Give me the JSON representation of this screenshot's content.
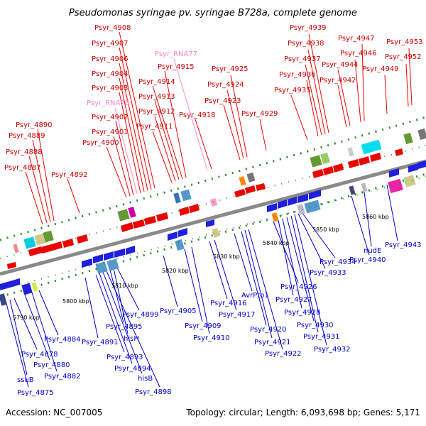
{
  "title": "Pseudomonas syringae pv. syringae B728a, complete genome",
  "footer": {
    "accession": "Accession: NC_007005",
    "summary": "Topology: circular; Length: 6,093,698 bp; Genes: 5,171"
  },
  "colors": {
    "forward_label": "#cc0000",
    "reverse_label": "#0000cc",
    "rna_label": "#ff88cc",
    "backbone": "#8a8a8a",
    "forward_cds": "#ee0000",
    "reverse_cds": "#1f1fdd",
    "tick": "#2e8b2e"
  },
  "scale_labels": [
    "5790 kbp",
    "5800 kbp",
    "5810 kbp",
    "5820 kbp",
    "5830 kbp",
    "5840 kbp",
    "5850 kbp",
    "5860 kbp"
  ],
  "forward_labels": [
    "Psyr_4887",
    "Psyr_4888",
    "Psyr_4889",
    "Psyr_4890",
    "Psyr_4892",
    "Psyr_4900",
    "Psyr_4901",
    "Psyr_4902",
    "Psyr_RNA76",
    "Psyr_4903",
    "Psyr_4904",
    "Psyr_4906",
    "Psyr_4907",
    "Psyr_4908",
    "Psyr_4911",
    "Psyr_4912",
    "Psyr_4913",
    "Psyr_4914",
    "Psyr_4915",
    "Psyr_RNA77",
    "Psyr_4918",
    "Psyr_4923",
    "Psyr_4924",
    "Psyr_4925",
    "Psyr_4929",
    "Psyr_4935",
    "Psyr_4936",
    "Psyr_4937",
    "Psyr_4938",
    "Psyr_4939",
    "Psyr_4942",
    "Psyr_4944",
    "Psyr_4946",
    "Psyr_4947",
    "Psyr_4949",
    "Psyr_4952",
    "Psyr_4953"
  ],
  "reverse_labels": [
    "Psyr_4875",
    "ssuB",
    "Psyr_4878",
    "Psyr_4880",
    "Psyr_4882",
    "Psyr_4884",
    "Psyr_4891",
    "Psyr_4893",
    "Psyr_4894",
    "hisB",
    "Psyr_4898",
    "Psyr_4895",
    "hisH",
    "Psyr_4899",
    "Psyr_4905",
    "Psyr_4909",
    "Psyr_4910",
    "Psyr_4916",
    "Psyr_4917",
    "AvrPto1",
    "Psyr_4920",
    "Psyr_4921",
    "Psyr_4922",
    "Psyr_4926",
    "Psyr_4927",
    "Psyr_4928",
    "Psyr_4930",
    "Psyr_4931",
    "Psyr_4932",
    "Psyr_4933",
    "Psyr_4934",
    "Psyr_4940",
    "nudE",
    "Psyr_4943"
  ]
}
